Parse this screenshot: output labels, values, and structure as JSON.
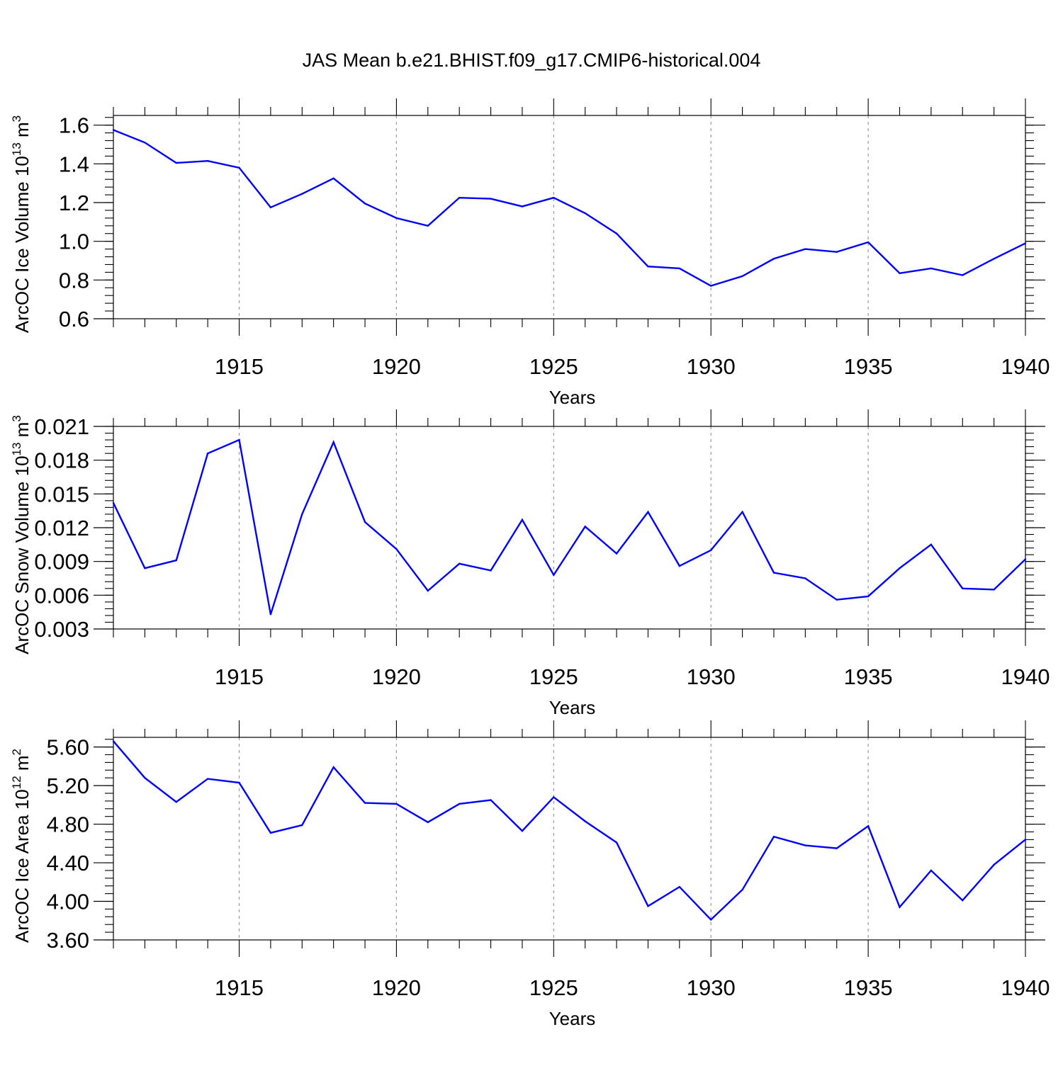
{
  "title": "JAS Mean b.e21.BHIST.f09_g17.CMIP6-historical.004",
  "chart_data": [
    {
      "type": "line",
      "xlabel": "Years",
      "ylabel": "ArcOC Ice Volume 10",
      "ylabel_sup": "13",
      "ylabel_unit": " m",
      "ylabel_unit_sup": "3",
      "xlim": [
        1911,
        1940
      ],
      "ylim": [
        0.6,
        1.65
      ],
      "x_ticks": [
        1915,
        1920,
        1925,
        1930,
        1935,
        1940
      ],
      "y_ticks": [
        0.6,
        0.8,
        1.0,
        1.2,
        1.4,
        1.6
      ],
      "y_tick_labels": [
        "0.6",
        "0.8",
        "1.0",
        "1.2",
        "1.4",
        "1.6"
      ],
      "y_minor": 0.04,
      "grid": "vertical dashed at labeled years",
      "color": "#0000ff",
      "x": [
        1911,
        1912,
        1913,
        1914,
        1915,
        1916,
        1917,
        1918,
        1919,
        1920,
        1921,
        1922,
        1923,
        1924,
        1925,
        1926,
        1927,
        1928,
        1929,
        1930,
        1931,
        1932,
        1933,
        1934,
        1935,
        1936,
        1937,
        1938,
        1939,
        1940
      ],
      "values": [
        1.575,
        1.51,
        1.405,
        1.415,
        1.38,
        1.175,
        1.245,
        1.325,
        1.195,
        1.12,
        1.08,
        1.225,
        1.22,
        1.18,
        1.225,
        1.145,
        1.04,
        0.87,
        0.86,
        0.77,
        0.82,
        0.91,
        0.96,
        0.945,
        0.995,
        0.835,
        0.86,
        0.825,
        0.91,
        0.99
      ]
    },
    {
      "type": "line",
      "xlabel": "Years",
      "ylabel": "ArcOC Snow Volume 10",
      "ylabel_sup": "13",
      "ylabel_unit": " m",
      "ylabel_unit_sup": "3",
      "xlim": [
        1911,
        1940
      ],
      "ylim": [
        0.003,
        0.021
      ],
      "x_ticks": [
        1915,
        1920,
        1925,
        1930,
        1935,
        1940
      ],
      "y_ticks": [
        0.003,
        0.006,
        0.009,
        0.012,
        0.015,
        0.018,
        0.021
      ],
      "y_tick_labels": [
        "0.003",
        "0.006",
        "0.009",
        "0.012",
        "0.015",
        "0.018",
        "0.021"
      ],
      "y_minor": 0.0006,
      "grid": "vertical dashed at labeled years",
      "color": "#0000ff",
      "x": [
        1911,
        1912,
        1913,
        1914,
        1915,
        1916,
        1917,
        1918,
        1919,
        1920,
        1921,
        1922,
        1923,
        1924,
        1925,
        1926,
        1927,
        1928,
        1929,
        1930,
        1931,
        1932,
        1933,
        1934,
        1935,
        1936,
        1937,
        1938,
        1939,
        1940
      ],
      "values": [
        0.0142,
        0.0084,
        0.0091,
        0.0186,
        0.0198,
        0.0043,
        0.0132,
        0.0196,
        0.0125,
        0.0101,
        0.0064,
        0.0088,
        0.0082,
        0.0127,
        0.0078,
        0.0121,
        0.0097,
        0.0134,
        0.0086,
        0.01,
        0.0134,
        0.008,
        0.0075,
        0.0056,
        0.0059,
        0.0084,
        0.0105,
        0.0066,
        0.0065,
        0.0092
      ]
    },
    {
      "type": "line",
      "xlabel": "Years",
      "ylabel": "ArcOC Ice Area 10",
      "ylabel_sup": "12",
      "ylabel_unit": " m",
      "ylabel_unit_sup": "2",
      "xlim": [
        1911,
        1940
      ],
      "ylim": [
        3.6,
        5.7
      ],
      "x_ticks": [
        1915,
        1920,
        1925,
        1930,
        1935,
        1940
      ],
      "y_ticks": [
        3.6,
        4.0,
        4.4,
        4.8,
        5.2,
        5.6
      ],
      "y_tick_labels": [
        "3.60",
        "4.00",
        "4.40",
        "4.80",
        "5.20",
        "5.60"
      ],
      "y_minor": 0.08,
      "grid": "vertical dashed at labeled years",
      "color": "#0000ff",
      "x": [
        1911,
        1912,
        1913,
        1914,
        1915,
        1916,
        1917,
        1918,
        1919,
        1920,
        1921,
        1922,
        1923,
        1924,
        1925,
        1926,
        1927,
        1928,
        1929,
        1930,
        1931,
        1932,
        1933,
        1934,
        1935,
        1936,
        1937,
        1938,
        1939,
        1940
      ],
      "values": [
        5.66,
        5.28,
        5.03,
        5.27,
        5.23,
        4.71,
        4.79,
        5.39,
        5.02,
        5.01,
        4.82,
        5.01,
        5.05,
        4.73,
        5.08,
        4.83,
        4.61,
        3.95,
        4.15,
        3.81,
        4.12,
        4.67,
        4.58,
        4.55,
        4.78,
        3.94,
        4.32,
        4.01,
        4.38,
        4.64
      ]
    }
  ]
}
